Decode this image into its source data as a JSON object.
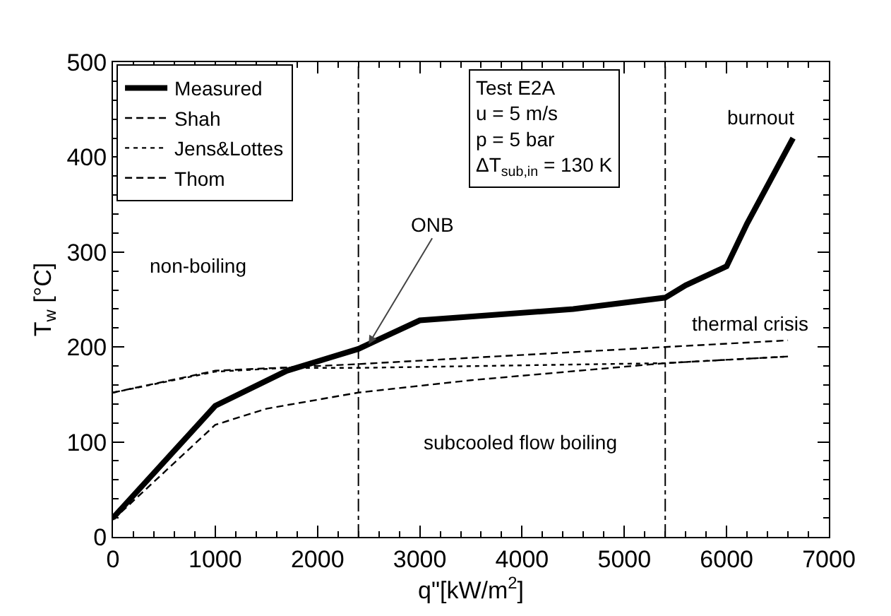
{
  "chart_data": {
    "type": "line",
    "xlabel": "q\"[kW/m$^{2}$]",
    "ylabel": "T$_{w}$ [°C]",
    "xlim": [
      0,
      7000
    ],
    "xticks": [
      0,
      1000,
      2000,
      3000,
      4000,
      5000,
      6000,
      7000
    ],
    "ylim": [
      0,
      500
    ],
    "yticks": [
      0,
      100,
      200,
      300,
      400,
      500
    ],
    "grid": false,
    "legend": "top left",
    "marker": "none",
    "series": [
      {
        "name": "Measured",
        "color": "#000000",
        "line_style": "solid",
        "x": [
          0,
          1000,
          1700,
          2400,
          2600,
          3000,
          4500,
          5400,
          5600,
          6000,
          6200,
          6600,
          6650
        ],
        "values": [
          20,
          138,
          175,
          198,
          208,
          228,
          240,
          252,
          265,
          285,
          330,
          410,
          420
        ]
      },
      {
        "name": "Shah",
        "color": "#000000",
        "line_style": "dashed",
        "x": [
          0,
          1000,
          1500,
          2400,
          3500,
          5400,
          6600
        ],
        "values": [
          18,
          118,
          135,
          152,
          165,
          183,
          190
        ]
      },
      {
        "name": "Jens&Lottes",
        "color": "#000000",
        "line_style": "dotted",
        "x": [
          0,
          1000,
          1700,
          2400,
          5400,
          6600
        ],
        "values": [
          152,
          174,
          178,
          178,
          183,
          190
        ]
      },
      {
        "name": "Thom",
        "color": "#000000",
        "line_style": "dashed",
        "x": [
          0,
          1000,
          2400,
          5400,
          6600
        ],
        "values": [
          152,
          175,
          182,
          200,
          207
        ]
      }
    ],
    "ref_lines": [
      {
        "axis": "x",
        "value": 2400,
        "label": null,
        "line_style": "dashed"
      },
      {
        "axis": "x",
        "value": 5400,
        "label": null,
        "line_style": "dashed"
      }
    ],
    "annotations": [
      {
        "text": "ONB",
        "x": 2500,
        "y": 203
      },
      "non-boiling",
      "subcooled flow boiling",
      "thermal crisis",
      "burnout",
      "Test E2A\nu = 5 m/s\np = 5 bar\nΔT$_{sub,in}$ = 130 K"
    ]
  }
}
